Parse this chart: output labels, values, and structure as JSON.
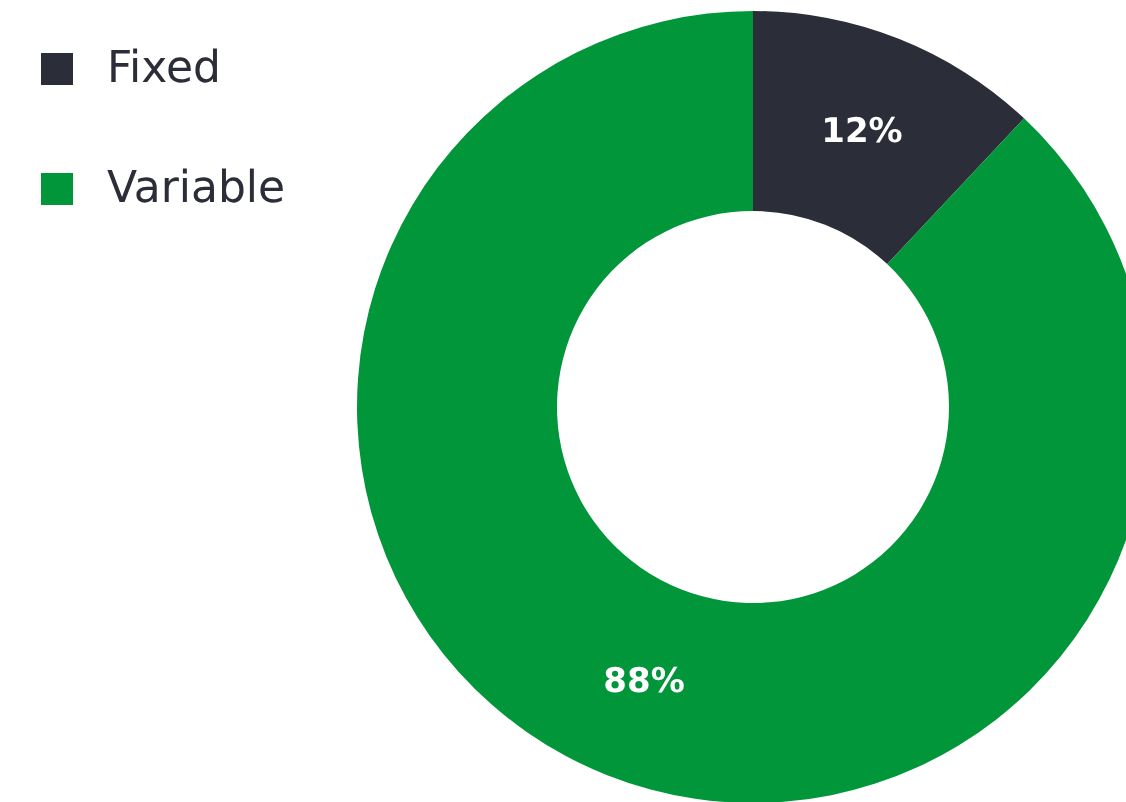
{
  "chart_data": {
    "type": "donut",
    "categories": [
      "Fixed",
      "Variable"
    ],
    "values": [
      12,
      88
    ],
    "colors": [
      "#2b2d38",
      "#009639"
    ],
    "value_labels": [
      "12%",
      "88%"
    ],
    "legend": "top left"
  }
}
